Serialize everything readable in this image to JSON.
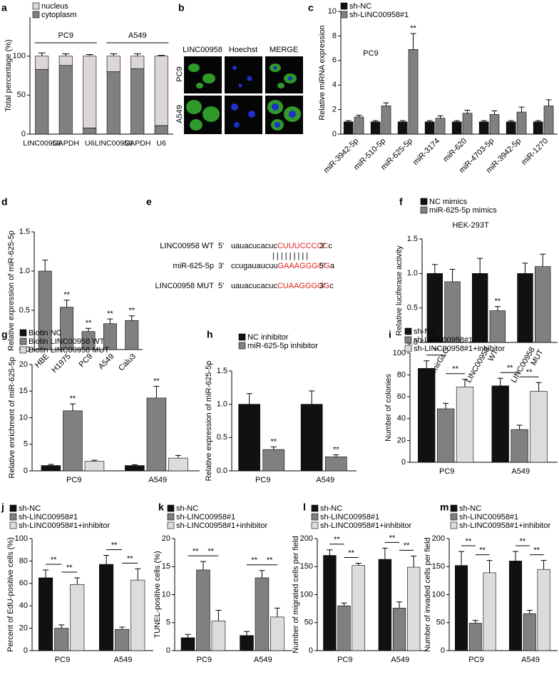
{
  "chart_data": [
    {
      "panel": "a",
      "type": "stacked_bar",
      "ylabel": "Total percentage (%)",
      "categories": [
        "LINC00958",
        "GAPDH",
        "U6",
        "LINC00958",
        "GAPDH",
        "U6"
      ],
      "groups": [
        "PC9",
        "A549"
      ],
      "series": [
        {
          "name": "nucleus",
          "color": "#dcd6d6",
          "values": [
            17,
            12,
            92,
            20,
            16,
            89
          ],
          "errors": [
            4,
            3,
            2,
            3,
            3,
            1
          ]
        },
        {
          "name": "cytoplasm",
          "color": "#808080",
          "values": [
            83,
            88,
            8,
            80,
            84,
            11
          ],
          "errors": [
            4,
            3,
            2,
            2,
            2,
            1
          ]
        }
      ],
      "ylim": [
        0,
        150
      ],
      "yticks": [
        0,
        50,
        100
      ]
    },
    {
      "panel": "c",
      "type": "bar",
      "ylabel": "Relative miRNA expression",
      "subtitle": "PC9",
      "categories": [
        "miR-3942-5p",
        "miR-510-5p",
        "miR-625-5p",
        "miR-3174",
        "miR-620",
        "miR-4703-5p",
        "miR-3942-5p",
        "miR-1270"
      ],
      "series": [
        {
          "name": "sh-NC",
          "color": "#111111",
          "values": [
            1,
            1,
            1,
            1,
            1,
            1,
            1,
            1
          ],
          "errors": [
            0.1,
            0.1,
            0.1,
            0.1,
            0.1,
            0.1,
            0.1,
            0.1
          ]
        },
        {
          "name": "sh-LINC00958#1",
          "color": "#808080",
          "values": [
            1.4,
            2.3,
            6.9,
            1.3,
            1.7,
            1.6,
            1.8,
            2.3
          ],
          "errors": [
            0.15,
            0.25,
            1.3,
            0.2,
            0.25,
            0.3,
            0.4,
            0.5
          ],
          "annotations": [
            null,
            null,
            "**",
            null,
            null,
            null,
            null,
            null
          ]
        }
      ],
      "ylim": [
        0,
        10
      ],
      "yticks": [
        0,
        2,
        4,
        6,
        8,
        10
      ]
    },
    {
      "panel": "d",
      "type": "bar",
      "ylabel": "Relative expression of miR-625-5p",
      "categories": [
        "HBE",
        "H1975",
        "PC9",
        "A549",
        "Calu3"
      ],
      "color": "#808080",
      "values": [
        1.0,
        0.54,
        0.23,
        0.33,
        0.37
      ],
      "errors": [
        0.14,
        0.09,
        0.04,
        0.06,
        0.06
      ],
      "annotations": [
        null,
        "**",
        "**",
        "**",
        "**"
      ],
      "ylim": [
        0,
        1.5
      ],
      "yticks": [
        {
          "value": 0,
          "label": "0.0"
        },
        0.5,
        {
          "value": 1,
          "label": "1.0"
        },
        1.5
      ]
    },
    {
      "panel": "f",
      "type": "bar",
      "ylabel": "Relative luciferase activity",
      "subtitle": "HEK-293T",
      "categories": [
        "pmirGLO",
        "LINC00958 WT",
        "LINC00958 MUT"
      ],
      "series": [
        {
          "name": "NC mimics",
          "color": "#111111",
          "values": [
            1.0,
            1.0,
            1.0
          ],
          "errors": [
            0.13,
            0.22,
            0.15
          ]
        },
        {
          "name": "miR-625-5p mimics",
          "color": "#808080",
          "values": [
            0.88,
            0.46,
            1.1
          ],
          "errors": [
            0.18,
            0.06,
            0.18
          ],
          "annotations": [
            null,
            "**",
            null
          ]
        }
      ],
      "ylim": [
        0,
        1.5
      ],
      "yticks": [
        {
          "value": 0,
          "label": "0.0"
        },
        0.5,
        {
          "value": 1,
          "label": "1.0"
        },
        1.5
      ]
    },
    {
      "panel": "g",
      "type": "bar",
      "ylabel": "Relative enrichment of miR-625-5p",
      "categories": [
        "PC9",
        "A549"
      ],
      "series": [
        {
          "name": "Biotin NC",
          "color": "#111111",
          "values": [
            1,
            1
          ],
          "errors": [
            0.2,
            0.15
          ]
        },
        {
          "name": "Biotin LINC00958 WT",
          "color": "#808080",
          "values": [
            11.3,
            13.7
          ],
          "errors": [
            1.3,
            2.2
          ],
          "annotations": [
            "**",
            "**"
          ]
        },
        {
          "name": "Biotin  LINC00958  MUT",
          "color": "#dcdcdc",
          "values": [
            1.8,
            2.4
          ],
          "errors": [
            0.2,
            0.5
          ]
        }
      ],
      "ylim": [
        0,
        20
      ],
      "yticks": [
        0,
        5,
        10,
        15,
        20
      ]
    },
    {
      "panel": "h",
      "type": "bar",
      "ylabel": "Relative expression of miR-625-5p",
      "categories": [
        "PC9",
        "A549"
      ],
      "series": [
        {
          "name": "NC inhibitor",
          "color": "#111111",
          "values": [
            1.0,
            1.0
          ],
          "errors": [
            0.16,
            0.2
          ]
        },
        {
          "name": "miR-625-5p inhibitor",
          "color": "#808080",
          "values": [
            0.32,
            0.21
          ],
          "errors": [
            0.04,
            0.03
          ],
          "annotations": [
            "**",
            "**"
          ]
        }
      ],
      "ylim": [
        0,
        1.5
      ],
      "yticks": [
        {
          "value": 0,
          "label": "0.0"
        },
        0.5,
        {
          "value": 1,
          "label": "1.0"
        },
        1.5
      ]
    },
    {
      "panel": "i",
      "type": "bar",
      "ylabel": "Number of colonies",
      "categories": [
        "PC9",
        "A549"
      ],
      "series": [
        {
          "name": "sh-NC",
          "color": "#111111",
          "values": [
            86,
            70
          ],
          "errors": [
            7,
            7
          ]
        },
        {
          "name": "sh-LINC00958#1",
          "color": "#808080",
          "values": [
            49,
            30
          ],
          "errors": [
            5,
            4
          ]
        },
        {
          "name": "sh-LINC00958#1+inhibitor",
          "color": "#dcdcdc",
          "values": [
            69,
            65
          ],
          "errors": [
            7,
            8
          ]
        }
      ],
      "brackets": [
        [
          "**",
          "**"
        ],
        [
          "**",
          "**"
        ]
      ],
      "ylim": [
        0,
        100
      ],
      "yticks": [
        0,
        20,
        40,
        60,
        80,
        100
      ]
    },
    {
      "panel": "j",
      "type": "bar",
      "ylabel": "Percent of EdU-positive cells (%)",
      "categories": [
        "PC9",
        "A549"
      ],
      "series": [
        {
          "name": "sh-NC",
          "color": "#111111",
          "values": [
            65,
            77
          ],
          "errors": [
            7,
            8
          ]
        },
        {
          "name": "sh-LINC00958#1",
          "color": "#808080",
          "values": [
            20,
            19
          ],
          "errors": [
            3,
            2
          ]
        },
        {
          "name": "sh-LINC00958#1+inhibitor",
          "color": "#dcdcdc",
          "values": [
            59,
            63
          ],
          "errors": [
            6,
            10
          ]
        }
      ],
      "brackets": [
        [
          "**",
          "**"
        ],
        [
          "**",
          "**"
        ]
      ],
      "ylim": [
        0,
        100
      ],
      "yticks": [
        0,
        20,
        40,
        60,
        80,
        100
      ]
    },
    {
      "panel": "k",
      "type": "bar",
      "ylabel": "TUNEL-positive cells (%)",
      "categories": [
        "PC9",
        "A549"
      ],
      "series": [
        {
          "name": "sh-NC",
          "color": "#111111",
          "values": [
            2.3,
            2.7
          ],
          "errors": [
            0.6,
            0.7
          ]
        },
        {
          "name": "sh-LINC00958#1",
          "color": "#808080",
          "values": [
            14.4,
            13
          ],
          "errors": [
            1.5,
            1.3
          ]
        },
        {
          "name": "sh-LINC00958#1+inhibitor",
          "color": "#dcdcdc",
          "values": [
            5.3,
            6
          ],
          "errors": [
            1.9,
            1.6
          ]
        }
      ],
      "brackets": [
        [
          "**",
          "**"
        ],
        [
          "**",
          "**"
        ]
      ],
      "ylim": [
        0,
        20
      ],
      "yticks": [
        0,
        5,
        10,
        15,
        20
      ]
    },
    {
      "panel": "l",
      "type": "bar",
      "ylabel": "Number of migrated cells per field",
      "categories": [
        "PC9",
        "A549"
      ],
      "series": [
        {
          "name": "sh-NC",
          "color": "#111111",
          "values": [
            170,
            163
          ],
          "errors": [
            10,
            20
          ]
        },
        {
          "name": "sh-LINC00958#1",
          "color": "#808080",
          "values": [
            80,
            76
          ],
          "errors": [
            5,
            11
          ]
        },
        {
          "name": "sh-LINC00958#1+inhibitor",
          "color": "#dcdcdc",
          "values": [
            152,
            149
          ],
          "errors": [
            4,
            20
          ]
        }
      ],
      "brackets": [
        [
          "**",
          "**"
        ],
        [
          "**",
          "**"
        ]
      ],
      "ylim": [
        0,
        200
      ],
      "yticks": [
        0,
        50,
        100,
        150,
        200
      ]
    },
    {
      "panel": "m",
      "type": "bar",
      "ylabel": "Number of invaded cells per field",
      "categories": [
        "PC9",
        "A549"
      ],
      "series": [
        {
          "name": "sh-NC",
          "color": "#111111",
          "values": [
            152,
            160
          ],
          "errors": [
            25,
            17
          ]
        },
        {
          "name": "sh-LINC00958#1",
          "color": "#808080",
          "values": [
            49,
            66
          ],
          "errors": [
            5,
            6
          ]
        },
        {
          "name": "sh-LINC00958#1+inhibitor",
          "color": "#dcdcdc",
          "values": [
            139,
            145
          ],
          "errors": [
            22,
            16
          ]
        }
      ],
      "brackets": [
        [
          "**",
          "**"
        ],
        [
          "**",
          "**"
        ]
      ],
      "ylim": [
        0,
        200
      ],
      "yticks": [
        0,
        50,
        100,
        150,
        200
      ]
    }
  ],
  "panel_b": {
    "panel": "b",
    "columns": [
      "LINC00958",
      "Hoechst",
      "MERGE"
    ],
    "rows": [
      "PC9",
      "A549"
    ]
  },
  "panel_e": {
    "panel": "e",
    "pairing": "| | | | | | | | |",
    "rows": [
      {
        "name": "LINC00958 WT",
        "left": "5'",
        "prefix": "uauacucacuc",
        "site": "CUUUCCCCC",
        "end": "c",
        "right": "3'"
      },
      {
        "name": "miR-625-5p",
        "left": "3'",
        "prefix": "ccugauaucuu",
        "site": "GAAAGGGGG",
        "end": "a",
        "right": "5'"
      },
      {
        "name": "LINC00958 MUT",
        "left": "5'",
        "prefix": "uauacucacuc",
        "site": "CUAAGGGGG",
        "end": "c",
        "right": "3'"
      }
    ]
  }
}
